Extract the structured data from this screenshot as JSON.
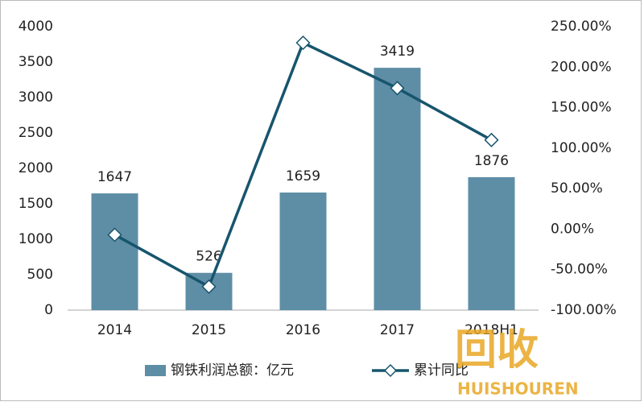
{
  "chart_data": {
    "type": "bar-line",
    "categories": [
      "2014",
      "2015",
      "2016",
      "2017",
      "2018H1"
    ],
    "series": [
      {
        "name": "钢铁利润总额：亿元",
        "type": "bar",
        "color": "#5e8ea6",
        "values": [
          1647,
          526,
          1659,
          3419,
          1876
        ]
      },
      {
        "name": "累计同比",
        "type": "line",
        "axis": "y2",
        "color": "#17556d",
        "values": [
          -7,
          -71,
          230,
          174,
          110
        ]
      }
    ],
    "ylim": [
      0,
      4000
    ],
    "yticks": [
      0,
      500,
      1000,
      1500,
      2000,
      2500,
      3000,
      3500,
      4000
    ],
    "y2lim": [
      -100,
      250
    ],
    "y2ticks": [
      {
        "value": -100,
        "label": "-100.00%"
      },
      {
        "value": -50,
        "label": "-50.00%"
      },
      {
        "value": 0,
        "label": "0.00%"
      },
      {
        "value": 50,
        "label": "50.00%"
      },
      {
        "value": 100,
        "label": "100.00%"
      },
      {
        "value": 150,
        "label": "150.00%"
      },
      {
        "value": 200,
        "label": "200.00%"
      },
      {
        "value": 250,
        "label": "250.00%"
      }
    ],
    "legend": "bottom",
    "watermark": {
      "text": "回收",
      "subtext": "HUISHOUREN"
    }
  }
}
